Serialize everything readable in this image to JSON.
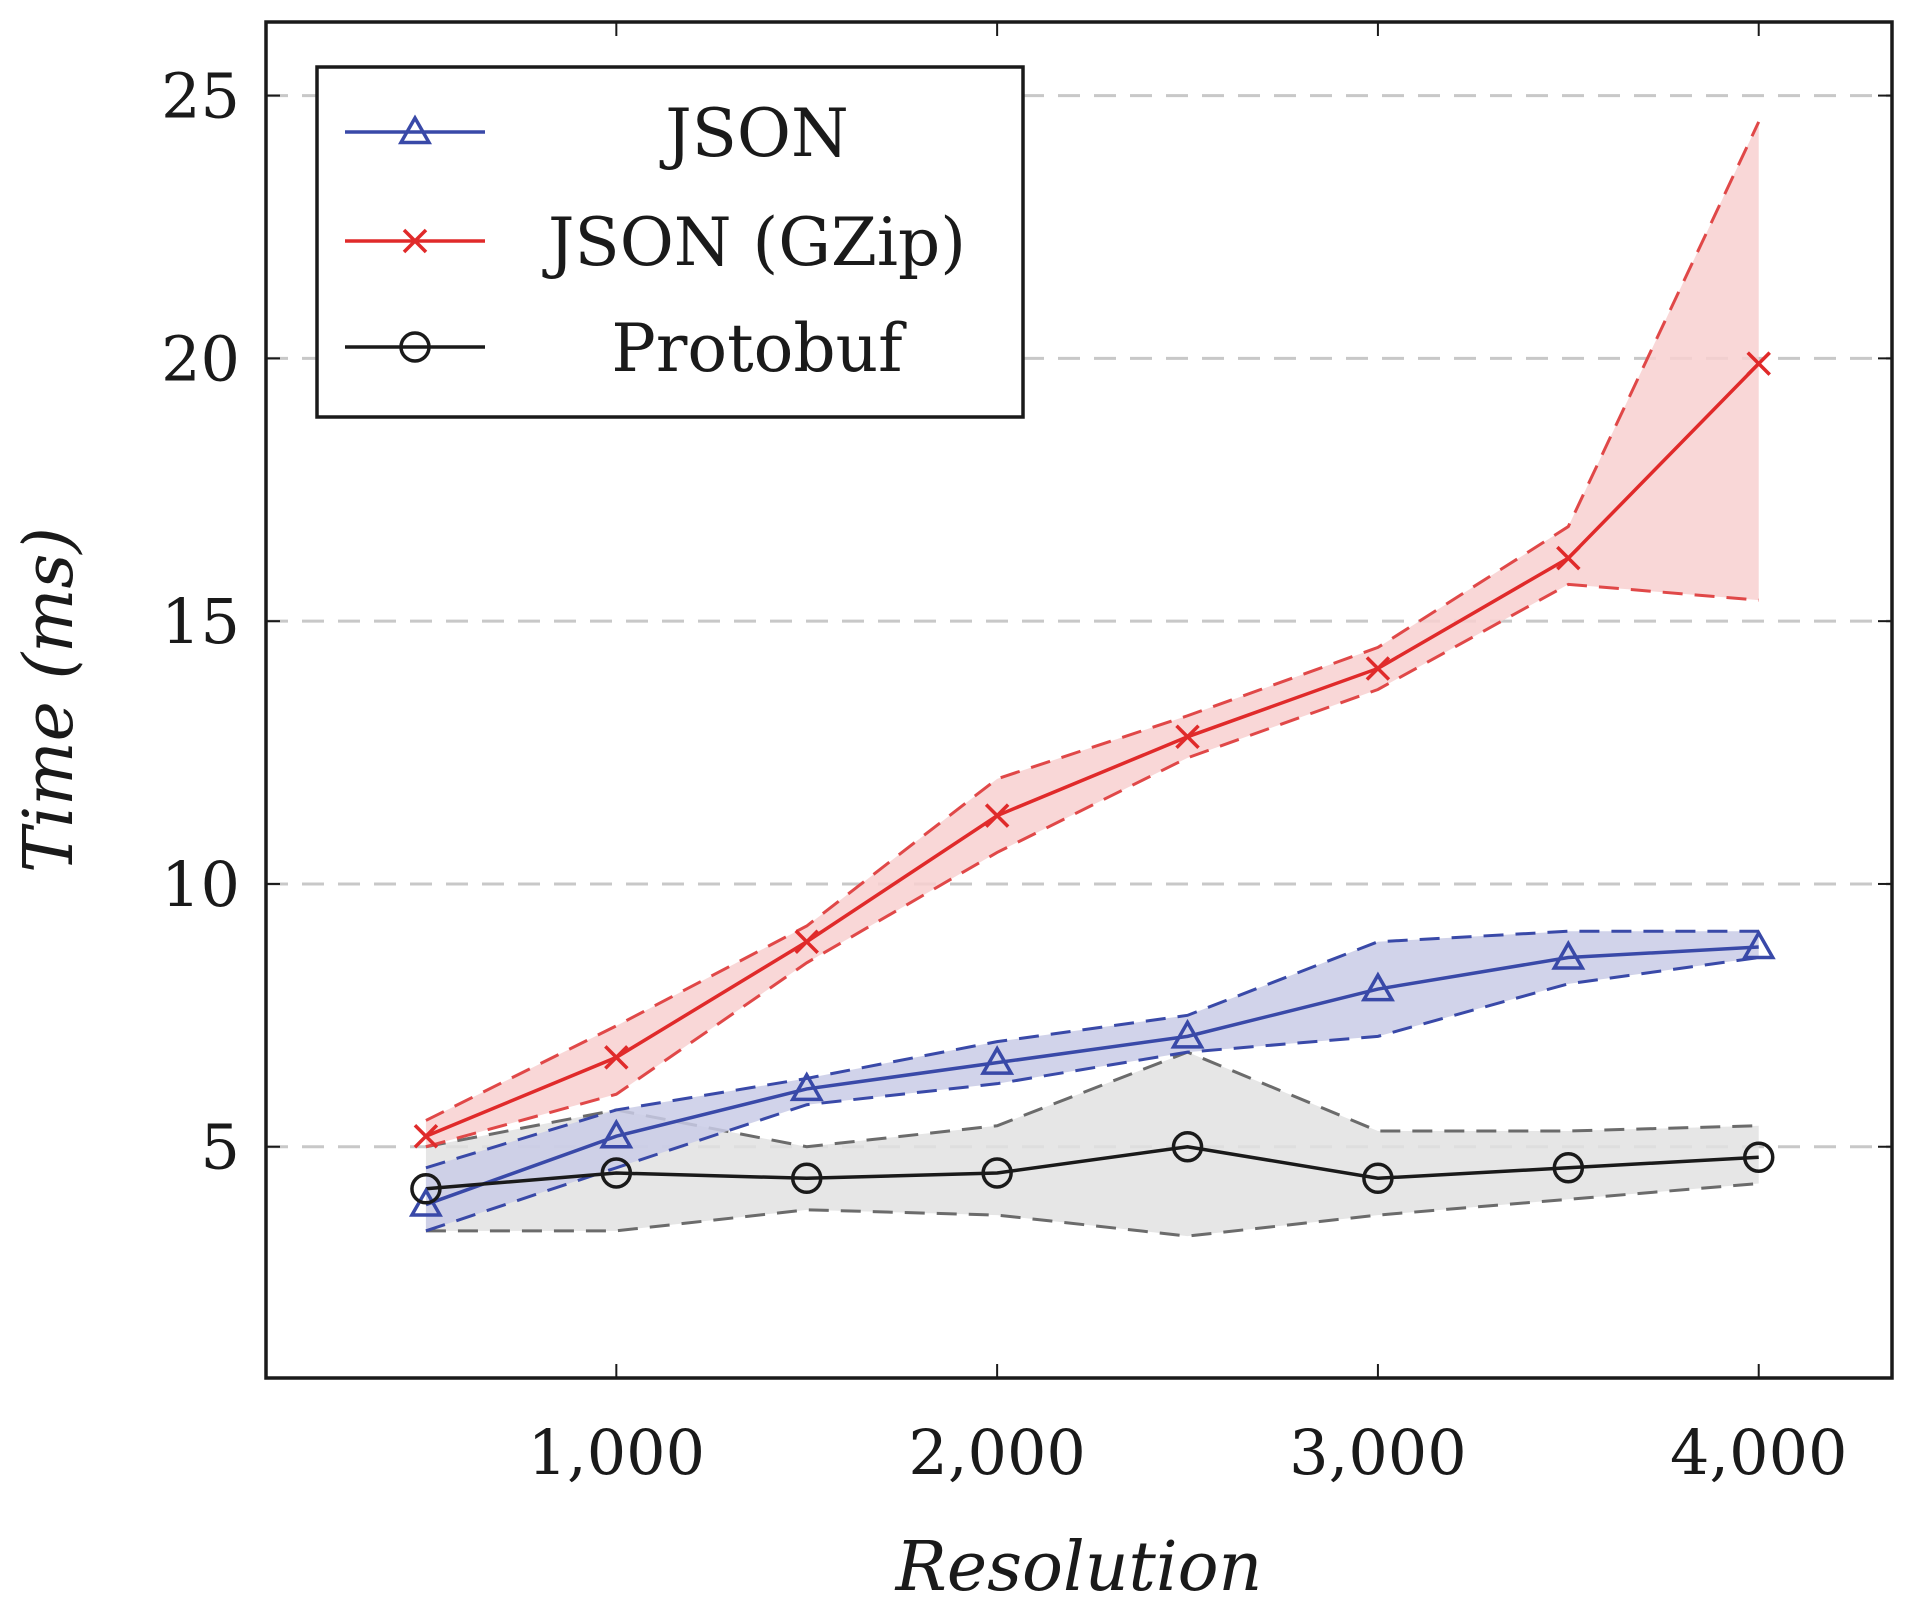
{
  "chart_data": {
    "type": "line",
    "xlabel": "Resolution",
    "ylabel": "Time (ms)",
    "xlim": [
      80,
      4350
    ],
    "ylim": [
      0.6,
      26.4
    ],
    "x_ticks": [
      1000,
      2000,
      3000,
      4000
    ],
    "x_tick_labels": [
      "1,000",
      "2,000",
      "3,000",
      "4,000"
    ],
    "y_ticks": [
      5,
      10,
      15,
      20,
      25
    ],
    "y_tick_labels": [
      "5",
      "10",
      "15",
      "20",
      "25"
    ],
    "grid": "horizontal dashed",
    "legend_position": "top-left",
    "x": [
      500,
      1000,
      1500,
      2000,
      2500,
      3000,
      3500,
      4000
    ],
    "series": [
      {
        "name": "JSON",
        "color": "#3949a8",
        "fill": "#c9cbe6",
        "marker": "triangle",
        "values": [
          3.9,
          5.2,
          6.1,
          6.6,
          7.1,
          8.0,
          8.6,
          8.8
        ],
        "upper": [
          4.6,
          5.7,
          6.3,
          7.0,
          7.5,
          8.9,
          9.1,
          9.1
        ],
        "lower": [
          3.4,
          4.6,
          5.8,
          6.2,
          6.8,
          7.1,
          8.1,
          8.6
        ]
      },
      {
        "name": "JSON (GZip)",
        "color": "#e02a2a",
        "fill": "#f8d0d0",
        "marker": "cross",
        "values": [
          5.2,
          6.7,
          8.9,
          11.3,
          12.8,
          14.1,
          16.2,
          19.9
        ],
        "upper": [
          5.5,
          7.3,
          9.2,
          12.0,
          13.2,
          14.5,
          16.8,
          24.5
        ],
        "lower": [
          5.0,
          6.0,
          8.5,
          10.6,
          12.4,
          13.7,
          15.7,
          15.4
        ]
      },
      {
        "name": "Protobuf",
        "color": "#1a1a1a",
        "fill": "#e2e2e2",
        "marker": "circle",
        "values": [
          4.2,
          4.5,
          4.4,
          4.5,
          5.0,
          4.4,
          4.6,
          4.8
        ],
        "upper": [
          5.0,
          5.7,
          5.0,
          5.4,
          6.8,
          5.3,
          5.3,
          5.4
        ],
        "lower": [
          3.4,
          3.4,
          3.8,
          3.7,
          3.3,
          3.7,
          4.0,
          4.3
        ]
      }
    ]
  },
  "colors": {
    "band_edge_json": "#3949a8",
    "band_edge_gzip": "#e04848",
    "band_edge_protobuf": "#6b6b6b",
    "grid": "#c8c8c8",
    "frame": "#1a1a1a"
  }
}
